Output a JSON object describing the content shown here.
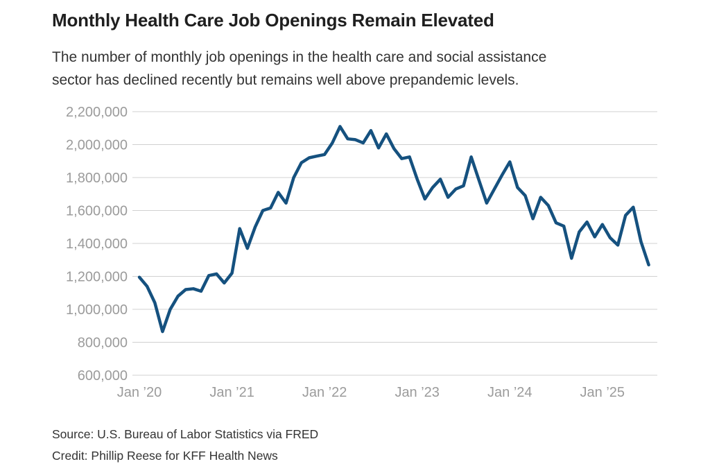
{
  "chart_data": {
    "type": "line",
    "title": "Monthly Health Care Job Openings Remain Elevated",
    "subtitle_lines": [
      "The number of monthly job openings in the health care and social assistance",
      "sector has declined recently but remains well above prepandemic levels."
    ],
    "ylim": [
      600000,
      2200000
    ],
    "grid_on": true,
    "legend_position": "none",
    "grid_color": "#d0d0d0",
    "tick_color": "#9b9b9b",
    "y_ticks": [
      {
        "value": 600000,
        "label": "600,000"
      },
      {
        "value": 800000,
        "label": "800,000"
      },
      {
        "value": 1000000,
        "label": "1,000,000"
      },
      {
        "value": 1200000,
        "label": "1,200,000"
      },
      {
        "value": 1400000,
        "label": "1,400,000"
      },
      {
        "value": 1600000,
        "label": "1,600,000"
      },
      {
        "value": 1800000,
        "label": "1,800,000"
      },
      {
        "value": 2000000,
        "label": "2,000,000"
      },
      {
        "value": 2200000,
        "label": "2,200,000"
      }
    ],
    "x_ticks": [
      {
        "month_index": 0,
        "label": "Jan ’20"
      },
      {
        "month_index": 12,
        "label": "Jan ’21"
      },
      {
        "month_index": 24,
        "label": "Jan ’22"
      },
      {
        "month_index": 36,
        "label": "Jan ’23"
      },
      {
        "month_index": 48,
        "label": "Jan ’24"
      },
      {
        "month_index": 60,
        "label": "Jan ’25"
      }
    ],
    "series": [
      {
        "name": "Monthly job openings, health care and social assistance",
        "color": "#15517f",
        "months": [
          "Jan 2020",
          "Feb 2020",
          "Mar 2020",
          "Apr 2020",
          "May 2020",
          "Jun 2020",
          "Jul 2020",
          "Aug 2020",
          "Sep 2020",
          "Oct 2020",
          "Nov 2020",
          "Dec 2020",
          "Jan 2021",
          "Feb 2021",
          "Mar 2021",
          "Apr 2021",
          "May 2021",
          "Jun 2021",
          "Jul 2021",
          "Aug 2021",
          "Sep 2021",
          "Oct 2021",
          "Nov 2021",
          "Dec 2021",
          "Jan 2022",
          "Feb 2022",
          "Mar 2022",
          "Apr 2022",
          "May 2022",
          "Jun 2022",
          "Jul 2022",
          "Aug 2022",
          "Sep 2022",
          "Oct 2022",
          "Nov 2022",
          "Dec 2022",
          "Jan 2023",
          "Feb 2023",
          "Mar 2023",
          "Apr 2023",
          "May 2023",
          "Jun 2023",
          "Jul 2023",
          "Aug 2023",
          "Sep 2023",
          "Oct 2023",
          "Nov 2023",
          "Dec 2023",
          "Jan 2024",
          "Feb 2024",
          "Mar 2024",
          "Apr 2024",
          "May 2024",
          "Jun 2024",
          "Jul 2024",
          "Aug 2024",
          "Sep 2024",
          "Oct 2024",
          "Nov 2024",
          "Dec 2024",
          "Jan 2025",
          "Feb 2025",
          "Mar 2025",
          "Apr 2025",
          "May 2025",
          "Jun 2025",
          "Jul 2025"
        ],
        "values": [
          1195000,
          1140000,
          1040000,
          865000,
          1000000,
          1080000,
          1120000,
          1125000,
          1110000,
          1205000,
          1215000,
          1160000,
          1220000,
          1490000,
          1370000,
          1500000,
          1600000,
          1615000,
          1710000,
          1645000,
          1800000,
          1890000,
          1920000,
          1930000,
          1940000,
          2010000,
          2110000,
          2035000,
          2030000,
          2010000,
          2085000,
          1980000,
          2065000,
          1975000,
          1915000,
          1925000,
          1790000,
          1670000,
          1740000,
          1790000,
          1680000,
          1730000,
          1750000,
          1925000,
          1785000,
          1645000,
          1730000,
          1815000,
          1895000,
          1740000,
          1690000,
          1550000,
          1680000,
          1630000,
          1525000,
          1505000,
          1310000,
          1470000,
          1530000,
          1440000,
          1515000,
          1435000,
          1390000,
          1570000,
          1620000,
          1410000,
          1270000
        ]
      }
    ]
  },
  "footer": {
    "source": "Source: U.S. Bureau of Labor Statistics via FRED",
    "credit": "Credit: Phillip Reese for KFF Health News"
  }
}
